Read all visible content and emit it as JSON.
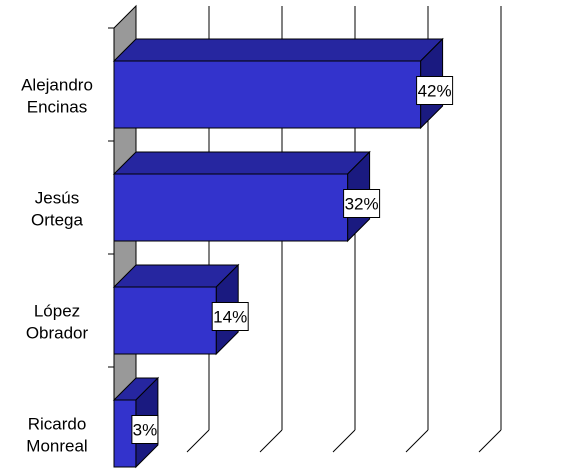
{
  "chart_data": {
    "type": "bar",
    "orientation": "horizontal",
    "style": "3d",
    "categories": [
      [
        "Alejandro",
        "Encinas"
      ],
      [
        "Jesús",
        "Ortega"
      ],
      [
        "López",
        "Obrador"
      ],
      [
        "Ricardo",
        "Monreal"
      ]
    ],
    "values": [
      42,
      32,
      14,
      3
    ],
    "data_labels": [
      "42%",
      "32%",
      "14%",
      "3%"
    ],
    "value_unit": "%",
    "xlim": [
      0,
      50
    ],
    "x_tick_step": 10,
    "grid": "vertical",
    "legend": "none",
    "colors": {
      "bar_front": "#3333CC",
      "bar_top": "#2626A0",
      "bar_side": "#1A1A80",
      "wall": "#999999",
      "grid": "#000000"
    }
  }
}
